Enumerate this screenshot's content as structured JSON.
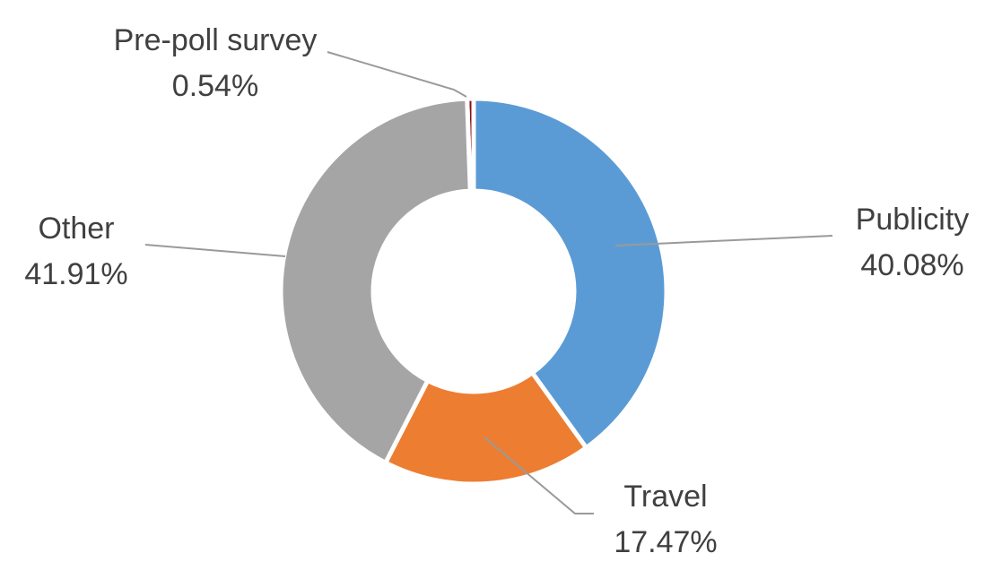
{
  "chart_data": {
    "type": "pie",
    "variant": "donut",
    "title": "",
    "slices": [
      {
        "label": "Pre-poll survey",
        "value": 0.54,
        "value_text": "0.54%",
        "color": "#8b0d14"
      },
      {
        "label": "Publicity",
        "value": 40.08,
        "value_text": "40.08%",
        "color": "#5b9bd5"
      },
      {
        "label": "Travel",
        "value": 17.47,
        "value_text": "17.47%",
        "color": "#ed7d31"
      },
      {
        "label": "Other",
        "value": 41.91,
        "value_text": "41.91%",
        "color": "#a5a5a5"
      }
    ],
    "legend": "none",
    "data_labels": "outside-with-leader-lines"
  }
}
